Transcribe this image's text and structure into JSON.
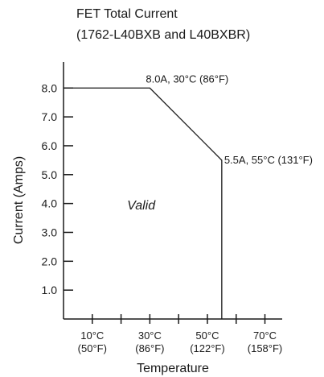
{
  "chart_data": {
    "type": "line",
    "title": "FET Total Current",
    "subtitle": "(1762-L40BXB and L40BXBR)",
    "xlabel": "Temperature",
    "ylabel": "Current (Amps)",
    "xlim": [
      0,
      76
    ],
    "ylim": [
      0,
      8.9
    ],
    "x_ticks_major": [
      {
        "value": 10,
        "label_c": "10°C",
        "label_f": "(50°F)"
      },
      {
        "value": 30,
        "label_c": "30°C",
        "label_f": "(86°F)"
      },
      {
        "value": 50,
        "label_c": "50°C",
        "label_f": "(122°F)"
      },
      {
        "value": 70,
        "label_c": "70°C",
        "label_f": "(158°F)"
      }
    ],
    "x_ticks_minor": [
      20,
      40,
      60
    ],
    "y_ticks": [
      {
        "value": 1.0,
        "label": "1.0"
      },
      {
        "value": 2.0,
        "label": "2.0"
      },
      {
        "value": 3.0,
        "label": "3.0"
      },
      {
        "value": 4.0,
        "label": "4.0"
      },
      {
        "value": 5.0,
        "label": "5.0"
      },
      {
        "value": 6.0,
        "label": "6.0"
      },
      {
        "value": 7.0,
        "label": "7.0"
      },
      {
        "value": 8.0,
        "label": "8.0"
      }
    ],
    "series": [
      {
        "x": [
          0,
          30,
          55,
          55
        ],
        "y": [
          8.0,
          8.0,
          5.5,
          0
        ]
      }
    ],
    "annotations": [
      {
        "x": 30,
        "y": 8.0,
        "text": "8.0A, 30°C (86°F)"
      },
      {
        "x": 55,
        "y": 5.5,
        "text": "5.5A, 55°C (131°F)"
      }
    ],
    "region_label": {
      "x": 27,
      "y": 3.8,
      "text": "Valid"
    },
    "grid": false,
    "legend": "none"
  }
}
